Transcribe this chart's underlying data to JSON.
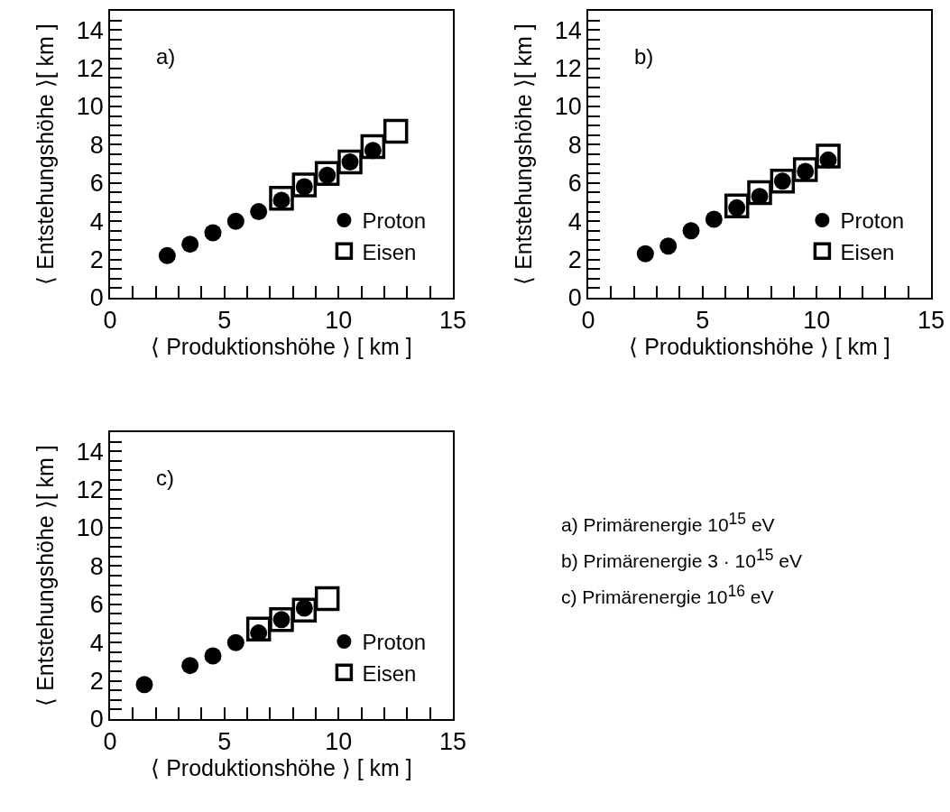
{
  "chart_data": [
    {
      "type": "scatter",
      "annotations": [
        "a)"
      ],
      "xlabel": "⟨ Produktionshöhe ⟩ [ km ]",
      "ylabel": "⟨ Entstehungshöhe ⟩[ km ]",
      "xlim": [
        0,
        15
      ],
      "ylim": [
        0,
        15
      ],
      "legend": "bottom right",
      "grid": false,
      "xticks": [
        0,
        {
          "value": 1,
          "label": null
        },
        {
          "value": 2,
          "label": null
        },
        {
          "value": 3,
          "label": null
        },
        {
          "value": 4,
          "label": null
        },
        5,
        {
          "value": 6,
          "label": null
        },
        {
          "value": 7,
          "label": null
        },
        {
          "value": 8,
          "label": null
        },
        {
          "value": 9,
          "label": null
        },
        10,
        {
          "value": 11,
          "label": null
        },
        {
          "value": 12,
          "label": null
        },
        {
          "value": 13,
          "label": null
        },
        {
          "value": 14,
          "label": null
        },
        15
      ],
      "yticks": [
        0,
        {
          "value": 0.5,
          "label": null
        },
        {
          "value": 1,
          "label": null
        },
        {
          "value": 1.5,
          "label": null
        },
        2,
        {
          "value": 2.5,
          "label": null
        },
        {
          "value": 3,
          "label": null
        },
        {
          "value": 3.5,
          "label": null
        },
        4,
        {
          "value": 4.5,
          "label": null
        },
        {
          "value": 5,
          "label": null
        },
        {
          "value": 5.5,
          "label": null
        },
        6,
        {
          "value": 6.5,
          "label": null
        },
        {
          "value": 7,
          "label": null
        },
        {
          "value": 7.5,
          "label": null
        },
        8,
        {
          "value": 8.5,
          "label": null
        },
        {
          "value": 9,
          "label": null
        },
        {
          "value": 9.5,
          "label": null
        },
        10,
        {
          "value": 10.5,
          "label": null
        },
        {
          "value": 11,
          "label": null
        },
        {
          "value": 11.5,
          "label": null
        },
        12,
        {
          "value": 12.5,
          "label": null
        },
        {
          "value": 13,
          "label": null
        },
        {
          "value": 13.5,
          "label": null
        },
        14,
        {
          "value": 14.5,
          "label": null
        }
      ],
      "series": [
        {
          "name": "Proton",
          "color": "#000000",
          "marker": "circle",
          "x": [
            2.5,
            3.5,
            4.5,
            5.5,
            6.5,
            7.5,
            8.5,
            9.5,
            10.5,
            11.5
          ],
          "values": [
            2.2,
            2.8,
            3.4,
            4.0,
            4.5,
            5.1,
            5.8,
            6.4,
            7.1,
            7.7
          ]
        },
        {
          "name": "Eisen",
          "color": "#000000",
          "marker": "square",
          "x": [
            7.5,
            8.5,
            9.5,
            10.5,
            11.5,
            12.5
          ],
          "values": [
            5.2,
            5.9,
            6.5,
            7.1,
            7.9,
            8.7
          ]
        }
      ]
    },
    {
      "type": "scatter",
      "annotations": [
        "b)"
      ],
      "xlabel": "⟨ Produktionshöhe ⟩ [ km ]",
      "ylabel": "⟨ Entstehungshöhe ⟩[ km ]",
      "xlim": [
        0,
        15
      ],
      "ylim": [
        0,
        15
      ],
      "legend": "bottom right",
      "grid": false,
      "xticks": [
        0,
        {
          "value": 1,
          "label": null
        },
        {
          "value": 2,
          "label": null
        },
        {
          "value": 3,
          "label": null
        },
        {
          "value": 4,
          "label": null
        },
        5,
        {
          "value": 6,
          "label": null
        },
        {
          "value": 7,
          "label": null
        },
        {
          "value": 8,
          "label": null
        },
        {
          "value": 9,
          "label": null
        },
        10,
        {
          "value": 11,
          "label": null
        },
        {
          "value": 12,
          "label": null
        },
        {
          "value": 13,
          "label": null
        },
        {
          "value": 14,
          "label": null
        },
        15
      ],
      "yticks": [
        0,
        {
          "value": 0.5,
          "label": null
        },
        {
          "value": 1,
          "label": null
        },
        {
          "value": 1.5,
          "label": null
        },
        2,
        {
          "value": 2.5,
          "label": null
        },
        {
          "value": 3,
          "label": null
        },
        {
          "value": 3.5,
          "label": null
        },
        4,
        {
          "value": 4.5,
          "label": null
        },
        {
          "value": 5,
          "label": null
        },
        {
          "value": 5.5,
          "label": null
        },
        6,
        {
          "value": 6.5,
          "label": null
        },
        {
          "value": 7,
          "label": null
        },
        {
          "value": 7.5,
          "label": null
        },
        8,
        {
          "value": 8.5,
          "label": null
        },
        {
          "value": 9,
          "label": null
        },
        {
          "value": 9.5,
          "label": null
        },
        10,
        {
          "value": 10.5,
          "label": null
        },
        {
          "value": 11,
          "label": null
        },
        {
          "value": 11.5,
          "label": null
        },
        12,
        {
          "value": 12.5,
          "label": null
        },
        {
          "value": 13,
          "label": null
        },
        {
          "value": 13.5,
          "label": null
        },
        14,
        {
          "value": 14.5,
          "label": null
        }
      ],
      "series": [
        {
          "name": "Proton",
          "color": "#000000",
          "marker": "circle",
          "x": [
            2.5,
            3.5,
            4.5,
            5.5,
            6.5,
            7.5,
            8.5,
            9.5,
            10.5
          ],
          "values": [
            2.3,
            2.7,
            3.5,
            4.1,
            4.7,
            5.3,
            6.1,
            6.6,
            7.2
          ]
        },
        {
          "name": "Eisen",
          "color": "#000000",
          "marker": "square",
          "x": [
            6.5,
            7.5,
            8.5,
            9.5,
            10.5
          ],
          "values": [
            4.8,
            5.5,
            6.1,
            6.7,
            7.4
          ]
        }
      ]
    },
    {
      "type": "scatter",
      "annotations": [
        "c)"
      ],
      "xlabel": "⟨ Produktionshöhe ⟩ [ km ]",
      "ylabel": "⟨ Entstehungshöhe ⟩[ km ]",
      "xlim": [
        0,
        15
      ],
      "ylim": [
        0,
        15
      ],
      "legend": "bottom right",
      "grid": false,
      "xticks": [
        0,
        {
          "value": 1,
          "label": null
        },
        {
          "value": 2,
          "label": null
        },
        {
          "value": 3,
          "label": null
        },
        {
          "value": 4,
          "label": null
        },
        5,
        {
          "value": 6,
          "label": null
        },
        {
          "value": 7,
          "label": null
        },
        {
          "value": 8,
          "label": null
        },
        {
          "value": 9,
          "label": null
        },
        10,
        {
          "value": 11,
          "label": null
        },
        {
          "value": 12,
          "label": null
        },
        {
          "value": 13,
          "label": null
        },
        {
          "value": 14,
          "label": null
        },
        15
      ],
      "yticks": [
        0,
        {
          "value": 0.5,
          "label": null
        },
        {
          "value": 1,
          "label": null
        },
        {
          "value": 1.5,
          "label": null
        },
        2,
        {
          "value": 2.5,
          "label": null
        },
        {
          "value": 3,
          "label": null
        },
        {
          "value": 3.5,
          "label": null
        },
        4,
        {
          "value": 4.5,
          "label": null
        },
        {
          "value": 5,
          "label": null
        },
        {
          "value": 5.5,
          "label": null
        },
        6,
        {
          "value": 6.5,
          "label": null
        },
        {
          "value": 7,
          "label": null
        },
        {
          "value": 7.5,
          "label": null
        },
        8,
        {
          "value": 8.5,
          "label": null
        },
        {
          "value": 9,
          "label": null
        },
        {
          "value": 9.5,
          "label": null
        },
        10,
        {
          "value": 10.5,
          "label": null
        },
        {
          "value": 11,
          "label": null
        },
        {
          "value": 11.5,
          "label": null
        },
        12,
        {
          "value": 12.5,
          "label": null
        },
        {
          "value": 13,
          "label": null
        },
        {
          "value": 13.5,
          "label": null
        },
        14,
        {
          "value": 14.5,
          "label": null
        }
      ],
      "series": [
        {
          "name": "Proton",
          "color": "#000000",
          "marker": "circle",
          "x": [
            1.5,
            3.5,
            4.5,
            5.5,
            6.5,
            7.5,
            8.5
          ],
          "values": [
            1.8,
            2.8,
            3.3,
            4.0,
            4.5,
            5.2,
            5.8
          ]
        },
        {
          "name": "Eisen",
          "color": "#000000",
          "marker": "square",
          "x": [
            6.5,
            7.5,
            8.5,
            9.5
          ],
          "values": [
            4.7,
            5.2,
            5.7,
            6.3
          ]
        }
      ]
    },
    {
      "type": "other",
      "annotations": [
        "a) Primärenergie 10$^{15}$ eV",
        "b) Primärenergie 3 · 10$^{15}$ eV",
        "c) Primärenergie 10$^{16}$ eV"
      ]
    }
  ]
}
